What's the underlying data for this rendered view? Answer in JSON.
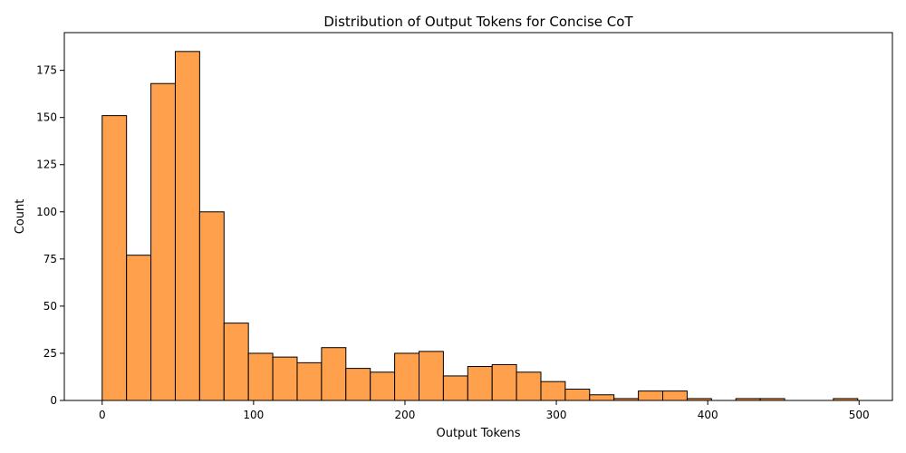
{
  "chart_data": {
    "type": "bar",
    "title": "Distribution of Output Tokens for Concise CoT",
    "xlabel": "Output Tokens",
    "ylabel": "Count",
    "xlim": [
      -25,
      522
    ],
    "ylim": [
      0,
      195
    ],
    "x_ticks": [
      0,
      100,
      200,
      300,
      400,
      500
    ],
    "y_ticks": [
      0,
      25,
      50,
      75,
      100,
      125,
      150,
      175
    ],
    "bin_edges": [
      0,
      16.1,
      32.2,
      48.3,
      64.4,
      80.5,
      96.6,
      112.7,
      128.8,
      144.9,
      161,
      177.1,
      193.2,
      209.3,
      225.4,
      241.5,
      257.6,
      273.7,
      289.8,
      305.9,
      322,
      338.1,
      354.2,
      370.3,
      386.4,
      402.5,
      418.6,
      434.7,
      450.8,
      466.9,
      483,
      499.1
    ],
    "values": [
      151,
      77,
      168,
      185,
      100,
      41,
      25,
      23,
      20,
      28,
      17,
      15,
      25,
      26,
      13,
      18,
      19,
      15,
      10,
      6,
      3,
      1,
      5,
      5,
      1,
      0,
      1,
      1,
      0,
      0,
      1
    ],
    "bar_color": "#ffa04d",
    "edge_color": "#000000",
    "grid": false
  }
}
